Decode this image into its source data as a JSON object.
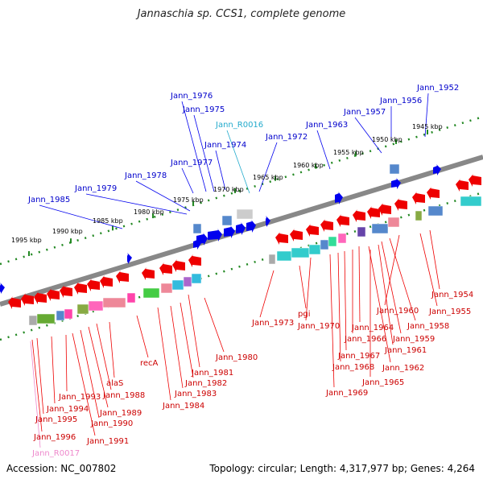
{
  "title": "Jannaschia sp. CCS1, complete genome",
  "footer": {
    "accession": "Accession: NC_007802",
    "topology": "Topology: circular; Length: 4,317,977 bp; Genes: 4,264"
  },
  "colors": {
    "label_plus": "#0000cc",
    "label_minus": "#cc0000",
    "label_rna_plus": "#22aacc",
    "label_rna_minus": "#ee88cc",
    "leader_plus": "#0000ee",
    "leader_minus": "#ee0000",
    "backbone": "#888888",
    "tick_mark": "#228822"
  },
  "scale_ticks": [
    "1945 kbp",
    "1950 kbp",
    "1955 kbp",
    "1960 kbp",
    "1965 kbp",
    "1970 kbp",
    "1975 kbp",
    "1980 kbp",
    "1985 kbp",
    "1990 kbp",
    "1995 kbp"
  ],
  "genes_plus": [
    "Jann_1952",
    "Jann_1956",
    "Jann_1957",
    "Jann_1963",
    "Jann_1972",
    "Jann_R0016",
    "Jann_1976",
    "Jann_1975",
    "Jann_1974",
    "Jann_1977",
    "Jann_1978",
    "Jann_1979",
    "Jann_1985"
  ],
  "genes_minus": [
    "Jann_1954",
    "Jann_1955",
    "Jann_1960",
    "Jann_1958",
    "Jann_1959",
    "Jann_1961",
    "Jann_1962",
    "Jann_1964",
    "Jann_1966",
    "Jann_1965",
    "Jann_1967",
    "Jann_1968",
    "Jann_1969",
    "Jann_1970",
    "pgi",
    "Jann_1973",
    "Jann_1980",
    "Jann_1981",
    "Jann_1982",
    "Jann_1983",
    "Jann_1984",
    "recA",
    "alaS",
    "Jann_1988",
    "Jann_1989",
    "Jann_1990",
    "Jann_1991",
    "Jann_1993",
    "Jann_1994",
    "Jann_1995",
    "Jann_1996",
    "Jann_R0017"
  ]
}
